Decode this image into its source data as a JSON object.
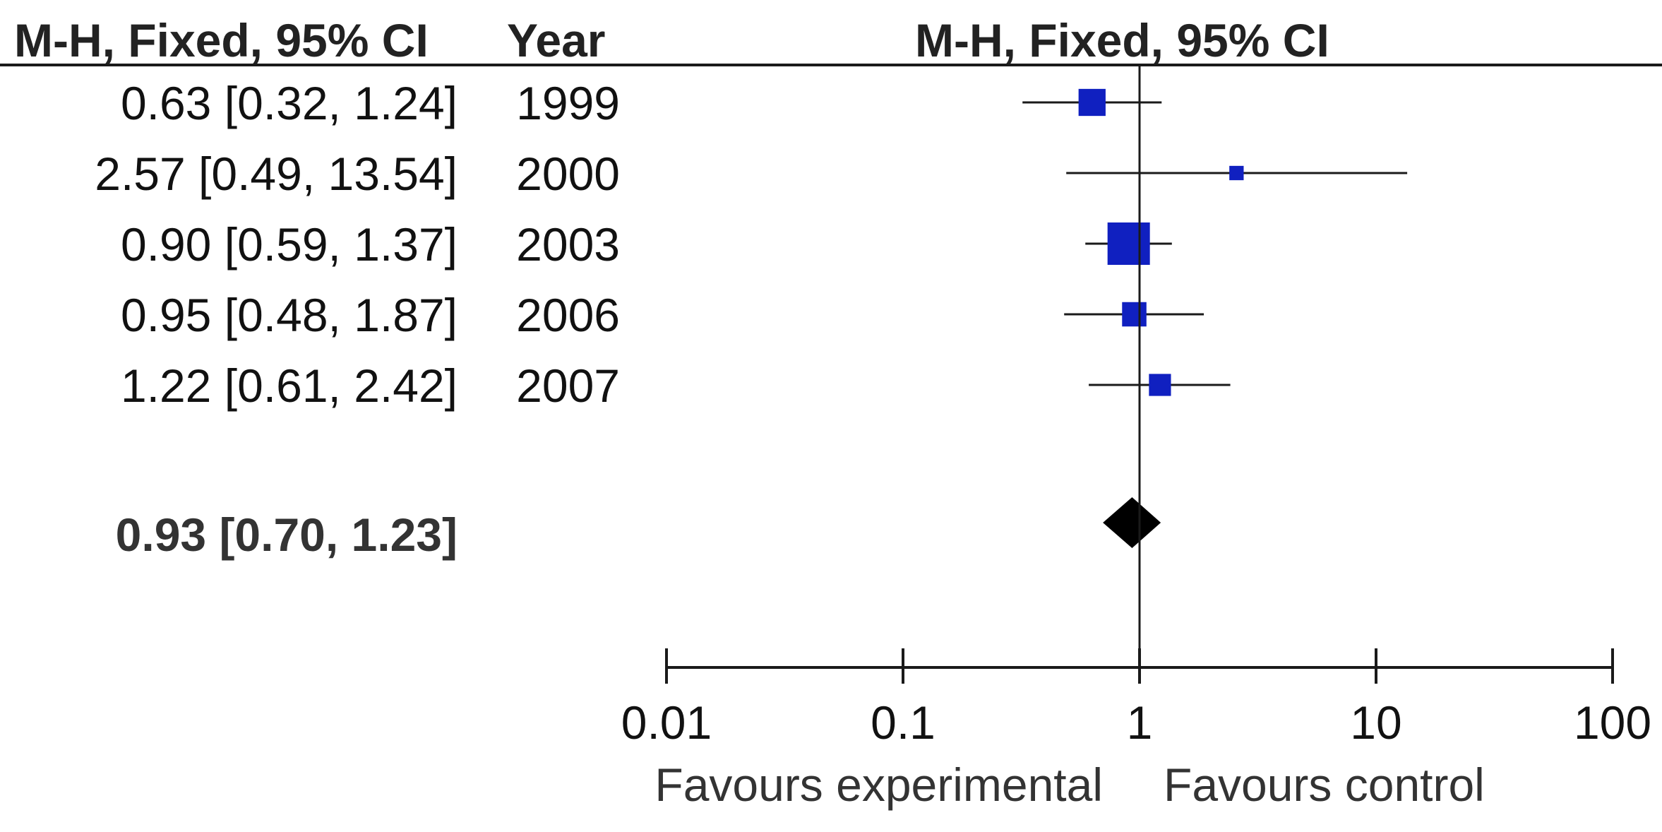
{
  "headers": {
    "estimate_col": "M-H, Fixed, 95% CI",
    "year_col": "Year",
    "plot_col": "M-H, Fixed, 95% CI"
  },
  "colors": {
    "study_marker": "#1020c0",
    "total_marker": "#000000",
    "lines": "#1a1a1a"
  },
  "chart_data": {
    "type": "forest",
    "x_scale": "log",
    "xlim": [
      0.01,
      100
    ],
    "x_ticks": [
      0.01,
      0.1,
      1,
      10,
      100
    ],
    "x_tick_labels": [
      "0.01",
      "0.1",
      "1",
      "10",
      "100"
    ],
    "reference_line": 1,
    "grid": false,
    "studies": [
      {
        "label": "0.63 [0.32, 1.24]",
        "year": "1999",
        "estimate": 0.63,
        "ci_low": 0.32,
        "ci_high": 1.24,
        "relative_weight": 0.3
      },
      {
        "label": "2.57 [0.49, 13.54]",
        "year": "2000",
        "estimate": 2.57,
        "ci_low": 0.49,
        "ci_high": 13.54,
        "relative_weight": 0.03
      },
      {
        "label": "0.90 [0.59, 1.37]",
        "year": "2003",
        "estimate": 0.9,
        "ci_low": 0.59,
        "ci_high": 1.37,
        "relative_weight": 1.0
      },
      {
        "label": "0.95 [0.48, 1.87]",
        "year": "2006",
        "estimate": 0.95,
        "ci_low": 0.48,
        "ci_high": 1.87,
        "relative_weight": 0.22
      },
      {
        "label": "1.22 [0.61, 2.42]",
        "year": "2007",
        "estimate": 1.22,
        "ci_low": 0.61,
        "ci_high": 2.42,
        "relative_weight": 0.16
      }
    ],
    "total": {
      "label": "0.93 [0.70, 1.23]",
      "estimate": 0.93,
      "ci_low": 0.7,
      "ci_high": 1.23
    },
    "favours_left": "Favours experimental",
    "favours_right": "Favours control"
  }
}
